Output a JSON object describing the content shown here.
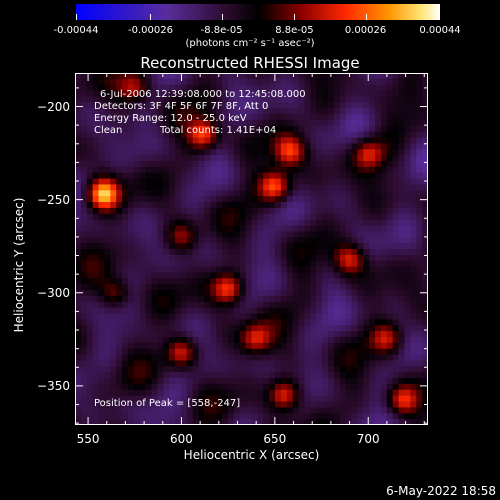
{
  "chart_data": {
    "type": "heatmap",
    "title": "Reconstructed RHESSI Image",
    "xlabel": "Heliocentric X (arcsec)",
    "ylabel": "Heliocentric Y (arcsec)",
    "xlim": [
      543,
      732
    ],
    "ylim": [
      -371,
      -182
    ],
    "x_ticks": [
      "550",
      "600",
      "650",
      "700"
    ],
    "x_tick_values": [
      550,
      600,
      650,
      700
    ],
    "y_ticks": [
      "-200",
      "-250",
      "-300",
      "-350"
    ],
    "y_tick_values": [
      -200,
      -250,
      -300,
      -350
    ],
    "colorbar": {
      "ticks": [
        "-0.00044",
        "-0.00026",
        "-8.8e-05",
        "8.8e-05",
        "0.00026",
        "0.00044"
      ],
      "tick_values": [
        -0.00044,
        -0.00026,
        -8.8e-05,
        8.8e-05,
        0.00026,
        0.00044
      ],
      "range": [
        -0.00044,
        0.00044
      ],
      "units": "(photons cm⁻² s⁻¹ asec⁻²)"
    },
    "annotations": {
      "time_range": "6-Jul-2006 12:39:08.000 to 12:45:08.000",
      "detectors": "Detectors: 3F 4F 5F 6F 7F 8F, Att 0",
      "energy": "Energy Range: 12.0 - 25.0 keV",
      "algorithm": "Clean",
      "counts": "Total counts: 1.41E+04",
      "peak": "Position of Peak = [558,-247]"
    },
    "bright_sources": [
      {
        "x": 558,
        "y": -247,
        "value": 0.00044
      },
      {
        "x": 612,
        "y": -215,
        "value": 0.00034
      },
      {
        "x": 650,
        "y": -243,
        "value": 0.00036
      },
      {
        "x": 658,
        "y": -224,
        "value": 0.0003
      },
      {
        "x": 625,
        "y": -298,
        "value": 0.00032
      },
      {
        "x": 600,
        "y": -332,
        "value": 0.00028
      },
      {
        "x": 655,
        "y": -355,
        "value": 0.00032
      },
      {
        "x": 718,
        "y": -358,
        "value": 0.0003
      },
      {
        "x": 690,
        "y": -282,
        "value": 0.00028
      },
      {
        "x": 700,
        "y": -225,
        "value": 0.00026
      },
      {
        "x": 575,
        "y": -190,
        "value": 0.00024
      },
      {
        "x": 565,
        "y": -300,
        "value": 0.00022
      },
      {
        "x": 640,
        "y": -325,
        "value": 0.00026
      },
      {
        "x": 710,
        "y": -325,
        "value": 0.00024
      },
      {
        "x": 600,
        "y": -270,
        "value": 0.0002
      }
    ],
    "grid": false
  },
  "footer": {
    "timestamp": "6-May-2022 18:58"
  },
  "colors": {
    "background": "#000000",
    "text": "#ffffff",
    "colormap": [
      "#0000ff",
      "#3c1ec8",
      "#5a2d9b",
      "#2a0a2a",
      "#000000",
      "#6e0000",
      "#dc1e00",
      "#ff7800",
      "#ffd23c",
      "#ffffff"
    ]
  }
}
